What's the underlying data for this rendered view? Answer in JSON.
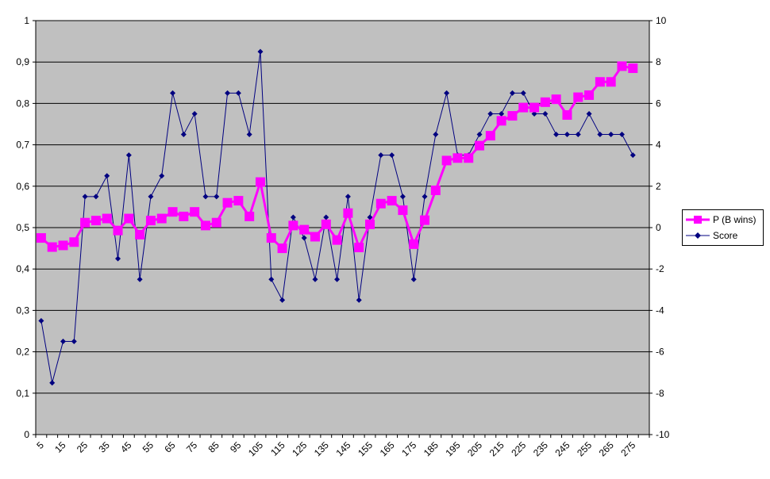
{
  "chart_data": {
    "type": "line",
    "title": "",
    "xlabel": "",
    "ylabel": "",
    "y2label": "",
    "ylim": [
      0,
      1
    ],
    "y2lim": [
      -10,
      10
    ],
    "yticks": [
      "0",
      "0,1",
      "0,2",
      "0,3",
      "0,4",
      "0,5",
      "0,6",
      "0,7",
      "0,8",
      "0,9",
      "1"
    ],
    "y2ticks": [
      "-10",
      "-8",
      "-6",
      "-4",
      "-2",
      "0",
      "2",
      "4",
      "6",
      "8",
      "10"
    ],
    "grid": true,
    "legend_position": "right",
    "x": [
      5,
      10,
      15,
      20,
      25,
      30,
      35,
      40,
      45,
      50,
      55,
      60,
      65,
      70,
      75,
      80,
      85,
      90,
      95,
      100,
      105,
      110,
      115,
      120,
      125,
      130,
      135,
      140,
      145,
      150,
      155,
      160,
      165,
      170,
      175,
      180,
      185,
      190,
      195,
      200,
      205,
      210,
      215,
      220,
      225,
      230,
      235,
      240,
      245,
      250,
      255,
      260,
      265,
      270,
      275
    ],
    "xtick_labels": [
      "5",
      "15",
      "25",
      "35",
      "45",
      "55",
      "65",
      "75",
      "85",
      "95",
      "105",
      "115",
      "125",
      "135",
      "145",
      "155",
      "165",
      "175",
      "185",
      "195",
      "205",
      "215",
      "225",
      "235",
      "245",
      "255",
      "265",
      "275"
    ],
    "series": [
      {
        "name": "P (B wins)",
        "axis": "left",
        "color": "#ff00ff",
        "marker": "square",
        "values": [
          0.475,
          0.453,
          0.457,
          0.465,
          0.512,
          0.517,
          0.522,
          0.493,
          0.522,
          0.483,
          0.517,
          0.522,
          0.538,
          0.527,
          0.538,
          0.505,
          0.512,
          0.56,
          0.565,
          0.527,
          0.61,
          0.475,
          0.45,
          0.505,
          0.495,
          0.478,
          0.508,
          0.47,
          0.535,
          0.452,
          0.508,
          0.558,
          0.565,
          0.542,
          0.46,
          0.518,
          0.59,
          0.662,
          0.668,
          0.668,
          0.698,
          0.722,
          0.758,
          0.77,
          0.79,
          0.79,
          0.803,
          0.81,
          0.772,
          0.815,
          0.82,
          0.852,
          0.852,
          0.89,
          0.885
        ]
      },
      {
        "name": "Score",
        "axis": "right",
        "color": "#000080",
        "marker": "diamond",
        "values": [
          -4.5,
          -7.5,
          -5.5,
          -5.5,
          1.5,
          1.5,
          2.5,
          -1.5,
          3.5,
          -2.5,
          1.5,
          2.5,
          6.5,
          4.5,
          5.5,
          1.5,
          1.5,
          6.5,
          6.5,
          4.5,
          8.5,
          -2.5,
          -3.5,
          0.5,
          -0.5,
          -2.5,
          0.5,
          -2.5,
          1.5,
          -3.5,
          0.5,
          3.5,
          3.5,
          1.5,
          -2.5,
          1.5,
          4.5,
          6.5,
          3.5,
          3.5,
          4.5,
          5.5,
          5.5,
          6.5,
          6.5,
          5.5,
          5.5,
          4.5,
          4.5,
          4.5,
          5.5,
          4.5,
          4.5,
          4.5,
          3.5
        ]
      }
    ]
  },
  "legend": {
    "items": [
      {
        "label": "P (B wins)"
      },
      {
        "label": "Score"
      }
    ]
  }
}
